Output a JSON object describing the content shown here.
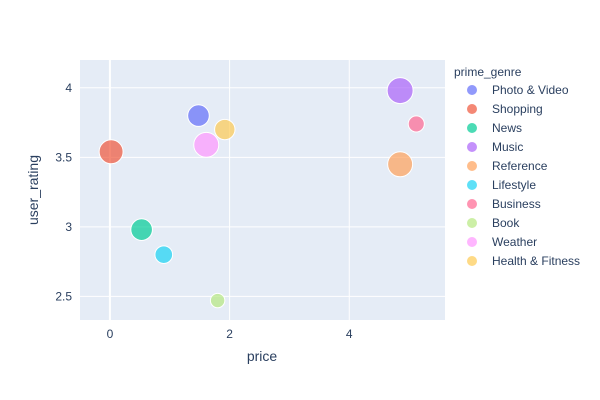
{
  "chart_data": {
    "type": "scatter",
    "title": "",
    "xlabel": "price",
    "ylabel": "user_rating",
    "xlim": [
      -0.5,
      5.6
    ],
    "ylim": [
      2.33,
      4.2
    ],
    "x_ticks": [
      0,
      2,
      4
    ],
    "y_ticks": [
      2.5,
      3,
      3.5,
      4
    ],
    "x_tick_labels": [
      "0",
      "2",
      "4"
    ],
    "y_tick_labels": [
      "2.5",
      "3",
      "3.5",
      "4"
    ],
    "grid": true,
    "legend": {
      "title": "prime_genre",
      "placement": "right"
    },
    "plot_bg": "#e5ecf6",
    "series": [
      {
        "name": "Photo & Video",
        "color": "#636efa",
        "x": 1.48,
        "y": 3.8,
        "size": 0.45
      },
      {
        "name": "Shopping",
        "color": "#ef553b",
        "x": 0.02,
        "y": 3.54,
        "size": 0.55
      },
      {
        "name": "News",
        "color": "#00cc96",
        "x": 0.53,
        "y": 2.98,
        "size": 0.45
      },
      {
        "name": "Music",
        "color": "#ab63fa",
        "x": 4.85,
        "y": 3.98,
        "size": 0.65
      },
      {
        "name": "Reference",
        "color": "#ffa15a",
        "x": 4.85,
        "y": 3.45,
        "size": 0.6
      },
      {
        "name": "Lifestyle",
        "color": "#19d3f3",
        "x": 0.9,
        "y": 2.8,
        "size": 0.3
      },
      {
        "name": "Business",
        "color": "#ff6692",
        "x": 5.12,
        "y": 3.74,
        "size": 0.25
      },
      {
        "name": "Book",
        "color": "#b6e880",
        "x": 1.8,
        "y": 2.47,
        "size": 0.2
      },
      {
        "name": "Weather",
        "color": "#ff97ff",
        "x": 1.61,
        "y": 3.59,
        "size": 0.6
      },
      {
        "name": "Health & Fitness",
        "color": "#fecb52",
        "x": 1.92,
        "y": 3.7,
        "size": 0.4
      }
    ]
  }
}
